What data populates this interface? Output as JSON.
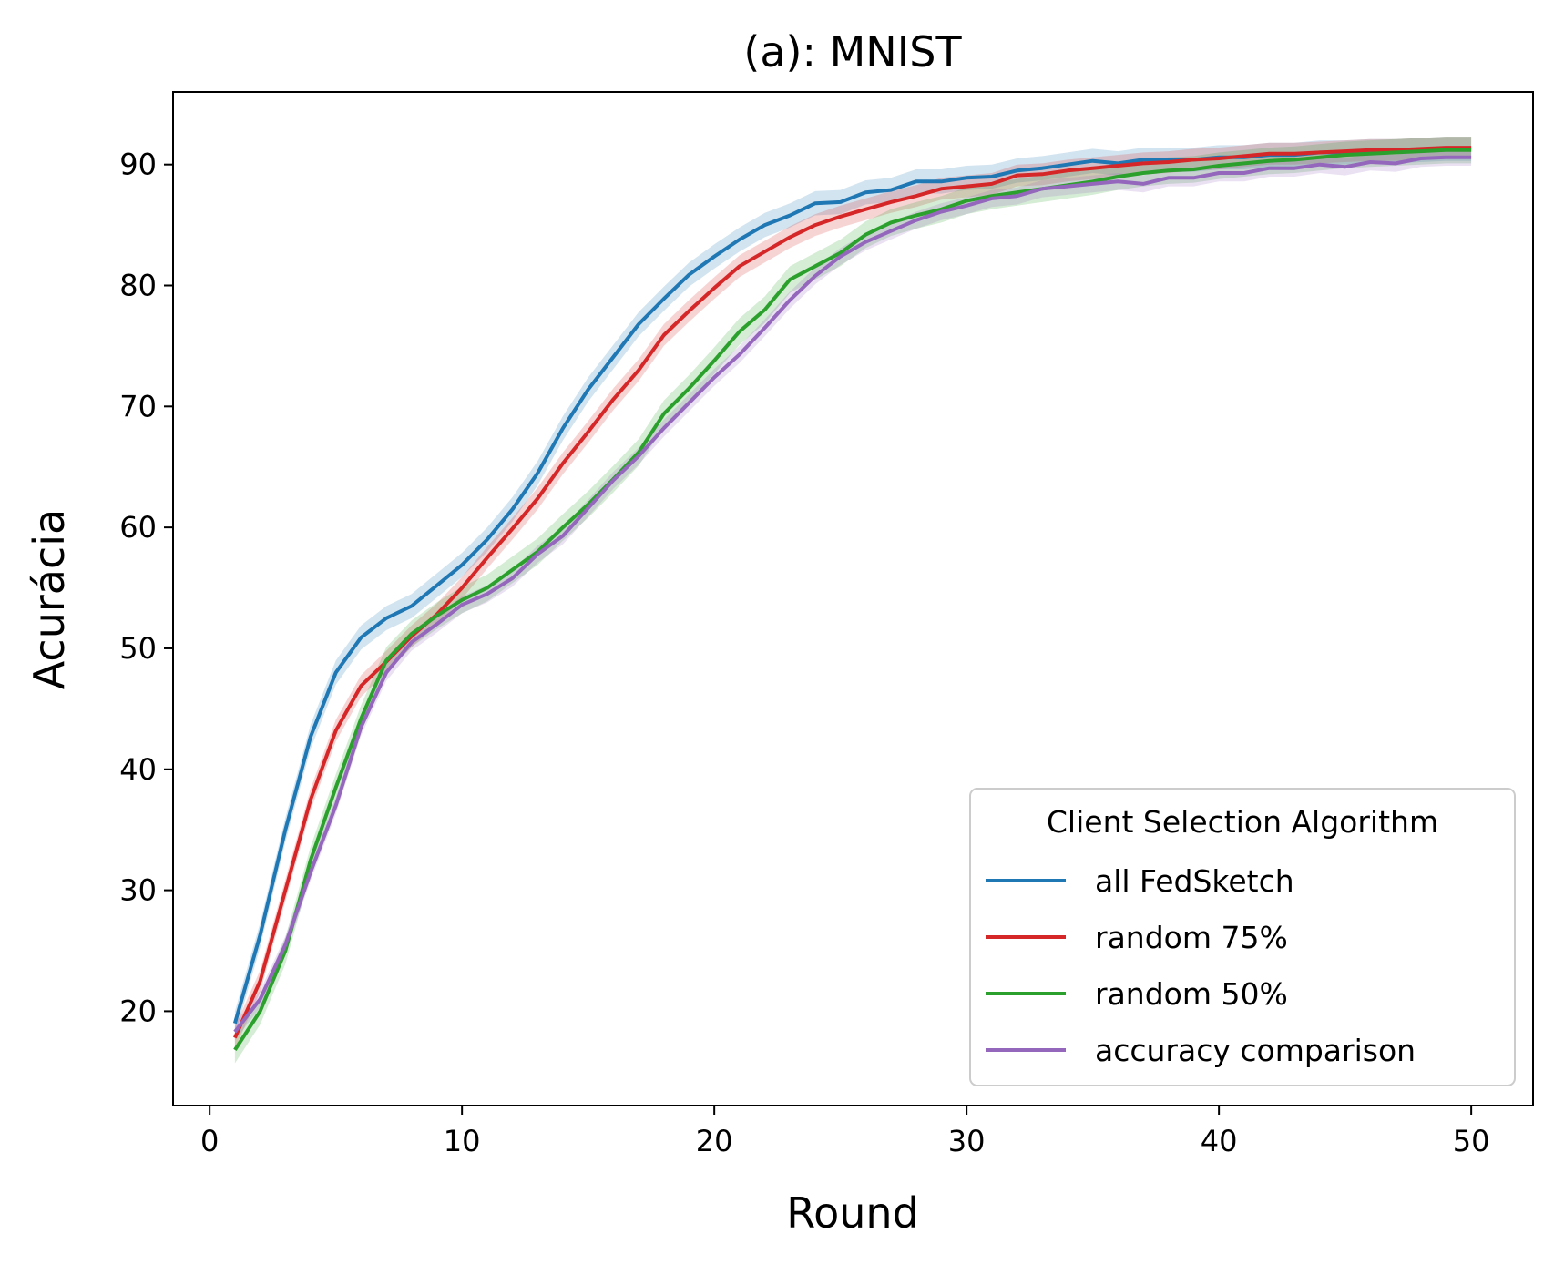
{
  "chart_data": {
    "type": "line",
    "title": "(a): MNIST",
    "xlabel": "Round",
    "ylabel": "Acurácia",
    "xlim": [
      -1.45,
      52.45
    ],
    "ylim": [
      12.2,
      96
    ],
    "xticks": [
      0,
      10,
      20,
      30,
      40,
      50
    ],
    "yticks": [
      20,
      30,
      40,
      50,
      60,
      70,
      80,
      90
    ],
    "grid": false,
    "legend": {
      "title": "Client Selection Algorithm",
      "placement": "lower-right"
    },
    "x": [
      1,
      2,
      3,
      4,
      5,
      6,
      7,
      8,
      9,
      10,
      11,
      12,
      13,
      14,
      15,
      16,
      17,
      18,
      19,
      20,
      21,
      22,
      23,
      24,
      25,
      26,
      27,
      28,
      29,
      30,
      31,
      32,
      33,
      34,
      35,
      36,
      37,
      38,
      39,
      40,
      41,
      42,
      43,
      44,
      45,
      46,
      47,
      48,
      49,
      50
    ],
    "series": [
      {
        "name": "all FedSketch",
        "color": "#1f77b4",
        "band": 1.0,
        "values": [
          19.0,
          26.3,
          35.0,
          42.7,
          48.0,
          50.9,
          52.5,
          53.5,
          55.2,
          56.9,
          59.0,
          61.5,
          64.5,
          68.2,
          71.4,
          74.1,
          76.8,
          78.9,
          80.9,
          82.4,
          83.8,
          85.0,
          85.8,
          86.8,
          86.9,
          87.7,
          87.9,
          88.6,
          88.6,
          88.9,
          89.0,
          89.5,
          89.7,
          90.0,
          90.3,
          90.1,
          90.4,
          90.4,
          90.4,
          90.6,
          90.6,
          90.8,
          90.8,
          91.0,
          91.0,
          91.1,
          91.1,
          91.2,
          91.3,
          91.3
        ]
      },
      {
        "name": "random 75%",
        "color": "#d62728",
        "band": 0.9,
        "values": [
          17.8,
          22.5,
          30.0,
          37.5,
          43.2,
          46.9,
          48.9,
          51.0,
          52.8,
          55.0,
          57.5,
          59.9,
          62.4,
          65.3,
          67.9,
          70.6,
          73.0,
          75.9,
          77.9,
          79.8,
          81.6,
          82.8,
          84.0,
          85.0,
          85.7,
          86.3,
          86.9,
          87.4,
          88.0,
          88.2,
          88.4,
          89.1,
          89.2,
          89.5,
          89.7,
          89.9,
          90.1,
          90.2,
          90.4,
          90.5,
          90.7,
          90.9,
          90.9,
          91.0,
          91.1,
          91.2,
          91.2,
          91.3,
          91.4,
          91.4
        ]
      },
      {
        "name": "random 50%",
        "color": "#2ca02c",
        "band": 1.1,
        "values": [
          16.8,
          20.0,
          25.0,
          32.5,
          38.5,
          44.2,
          49.0,
          51.2,
          52.7,
          54.0,
          55.0,
          56.5,
          58.0,
          60.0,
          61.9,
          64.0,
          66.2,
          69.4,
          71.5,
          73.8,
          76.2,
          78.0,
          80.5,
          81.6,
          82.7,
          84.2,
          85.2,
          85.8,
          86.3,
          87.0,
          87.4,
          87.7,
          88.0,
          88.3,
          88.6,
          89.0,
          89.3,
          89.5,
          89.6,
          89.9,
          90.1,
          90.3,
          90.4,
          90.6,
          90.8,
          90.9,
          91.0,
          91.1,
          91.2,
          91.2
        ]
      },
      {
        "name": "accuracy comparison",
        "color": "#9467bd",
        "band": 0.7,
        "values": [
          18.3,
          21.0,
          25.5,
          31.5,
          37.0,
          43.5,
          48.0,
          50.5,
          52.0,
          53.6,
          54.5,
          55.8,
          57.8,
          59.3,
          61.6,
          63.9,
          65.9,
          68.2,
          70.3,
          72.4,
          74.3,
          76.5,
          78.8,
          80.8,
          82.4,
          83.6,
          84.5,
          85.4,
          86.1,
          86.6,
          87.2,
          87.4,
          88.0,
          88.2,
          88.4,
          88.6,
          88.4,
          88.9,
          88.9,
          89.3,
          89.3,
          89.7,
          89.7,
          90.0,
          89.8,
          90.2,
          90.1,
          90.5,
          90.6,
          90.6
        ]
      }
    ]
  }
}
